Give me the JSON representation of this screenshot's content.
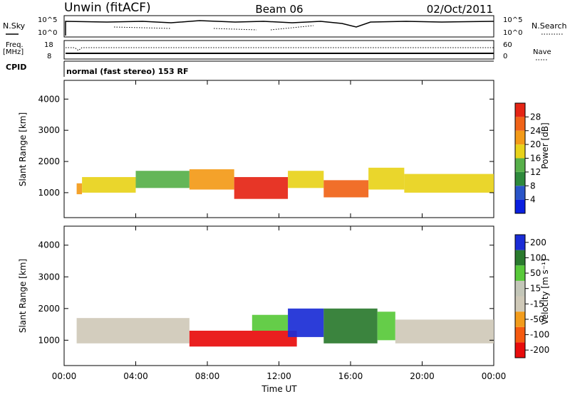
{
  "header": {
    "station": "Unwin (fitACF)",
    "beam": "Beam 06",
    "date": "02/Oct/2011"
  },
  "status_panel": {
    "nsky_label": "N.Sky",
    "nsearch_label": "N.Search",
    "freq_label": "Freq.",
    "freq_unit": "[MHz]",
    "nave_label": "Nave",
    "cpid_label": "CPID",
    "nsky_ticks": [
      "10^5",
      "10^0"
    ],
    "nsearch_ticks": [
      "10^5",
      "10^0"
    ],
    "freq_ticks": [
      "18",
      "8"
    ],
    "nave_ticks": [
      "60",
      "0"
    ],
    "mode_text": "normal (fast stereo) 153 RF"
  },
  "colors": {
    "power": [
      "#0a1fe0",
      "#2a55c8",
      "#2e8a3c",
      "#57b04a",
      "#e8d21a",
      "#f39a18",
      "#f06318",
      "#e52515"
    ],
    "velocity": [
      "#e80c0c",
      "#f55a10",
      "#f29c1c",
      "#cfc9b8",
      "#c3c6b8",
      "#58c93a",
      "#2a7a2e",
      "#1a2cd6"
    ]
  },
  "chart_data": [
    {
      "type": "heatmap",
      "name": "power",
      "ylabel": "Slant Range [km]",
      "y_ticks": [
        "1000",
        "2000",
        "3000",
        "4000"
      ],
      "ylim": [
        200,
        4600
      ],
      "xlim": [
        "00:00",
        "24:00"
      ],
      "colorbar_label": "Power [dB]",
      "colorbar_ticks": [
        "4",
        "8",
        "12",
        "16",
        "20",
        "24",
        "28"
      ],
      "bands": [
        {
          "t0": 0.7,
          "t1": 1.0,
          "r0": 950,
          "r1": 1300,
          "v": 20
        },
        {
          "t0": 1.0,
          "t1": 4.0,
          "r0": 1000,
          "r1": 1500,
          "v": 16
        },
        {
          "t0": 4.0,
          "t1": 7.0,
          "r0": 1150,
          "r1": 1700,
          "v": 14
        },
        {
          "t0": 7.0,
          "t1": 9.5,
          "r0": 1100,
          "r1": 1750,
          "v": 22
        },
        {
          "t0": 9.5,
          "t1": 12.5,
          "r0": 800,
          "r1": 1500,
          "v": 28
        },
        {
          "t0": 12.5,
          "t1": 14.5,
          "r0": 1150,
          "r1": 1700,
          "v": 18
        },
        {
          "t0": 14.5,
          "t1": 17.0,
          "r0": 850,
          "r1": 1400,
          "v": 26
        },
        {
          "t0": 17.0,
          "t1": 19.0,
          "r0": 1100,
          "r1": 1800,
          "v": 16
        },
        {
          "t0": 19.0,
          "t1": 24.0,
          "r0": 1000,
          "r1": 1600,
          "v": 16
        }
      ]
    },
    {
      "type": "heatmap",
      "name": "velocity",
      "ylabel": "Slant Range [km]",
      "y_ticks": [
        "1000",
        "2000",
        "3000",
        "4000"
      ],
      "ylim": [
        200,
        4600
      ],
      "xlabel": "Time UT",
      "x_ticks": [
        "00:00",
        "04:00",
        "08:00",
        "12:00",
        "16:00",
        "20:00",
        "00:00"
      ],
      "xlim": [
        "00:00",
        "24:00"
      ],
      "colorbar_label": "Velocity [m s⁻¹]",
      "colorbar_ticks": [
        "-200",
        "-100",
        "-50",
        "-15",
        "15",
        "50",
        "100",
        "200"
      ],
      "bands": [
        {
          "t0": 0.7,
          "t1": 7.0,
          "r0": 900,
          "r1": 1700,
          "v": 0
        },
        {
          "t0": 7.0,
          "t1": 13.0,
          "r0": 800,
          "r1": 1300,
          "v": -200
        },
        {
          "t0": 10.5,
          "t1": 12.5,
          "r0": 1300,
          "r1": 1800,
          "v": 50
        },
        {
          "t0": 12.5,
          "t1": 14.5,
          "r0": 1100,
          "r1": 2000,
          "v": 200
        },
        {
          "t0": 14.5,
          "t1": 17.5,
          "r0": 900,
          "r1": 2000,
          "v": 150
        },
        {
          "t0": 17.5,
          "t1": 18.5,
          "r0": 1000,
          "r1": 1900,
          "v": 50
        },
        {
          "t0": 18.5,
          "t1": 24.0,
          "r0": 900,
          "r1": 1650,
          "v": 0
        }
      ]
    }
  ]
}
